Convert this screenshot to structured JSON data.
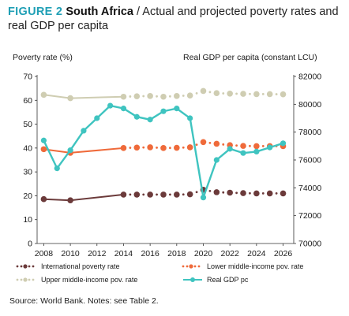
{
  "figure": {
    "label": "FIGURE 2",
    "country": "South Africa",
    "subtitle": "/ Actual and projected poverty rates and real GDP per capita"
  },
  "axes": {
    "left_title": "Poverty rate (%)",
    "right_title": "Real GDP per capita (constant LCU)"
  },
  "source": "Source: World Bank. Notes: see Table 2.",
  "colors": {
    "international": "#6b3a3a",
    "lower_middle": "#ef6a3a",
    "upper_middle": "#cfcdb2",
    "gdp": "#3fc4c0"
  },
  "chart_data": {
    "type": "line",
    "x_ticks": [
      "2008",
      "2010",
      "2012",
      "2014",
      "2016",
      "2018",
      "2020",
      "2022",
      "2024",
      "2026"
    ],
    "xlim": [
      2007.5,
      2026.8
    ],
    "ylim_left": [
      0,
      70
    ],
    "ylim_right": [
      70000,
      82000
    ],
    "y_ticks_left": [
      "0",
      "10",
      "20",
      "30",
      "40",
      "50",
      "60",
      "70"
    ],
    "y_ticks_right": [
      "70000",
      "72000",
      "74000",
      "76000",
      "78000",
      "80000",
      "82000"
    ],
    "grid": false,
    "legend_position": "bottom",
    "series": [
      {
        "name": "International poverty rate",
        "axis": "left",
        "color_key": "international",
        "actual": [
          [
            2008,
            18.6
          ],
          [
            2010,
            18.1
          ],
          [
            2014,
            20.5
          ]
        ],
        "projected": [
          [
            2014,
            20.5
          ],
          [
            2015,
            20.5
          ],
          [
            2016,
            20.5
          ],
          [
            2017,
            20.5
          ],
          [
            2018,
            20.5
          ],
          [
            2019,
            20.6
          ],
          [
            2020,
            22.5
          ],
          [
            2021,
            21.5
          ],
          [
            2022,
            21.3
          ],
          [
            2023,
            21.1
          ],
          [
            2024,
            21.0
          ],
          [
            2025,
            21.0
          ],
          [
            2026,
            21.0
          ]
        ]
      },
      {
        "name": "Lower middle-income pov. rate",
        "axis": "left",
        "color_key": "lower_middle",
        "actual": [
          [
            2008,
            39.5
          ],
          [
            2010,
            38.0
          ],
          [
            2014,
            40.0
          ]
        ],
        "projected": [
          [
            2014,
            40.0
          ],
          [
            2015,
            40.2
          ],
          [
            2016,
            40.3
          ],
          [
            2017,
            40.0
          ],
          [
            2018,
            40.1
          ],
          [
            2019,
            40.3
          ],
          [
            2020,
            42.5
          ],
          [
            2021,
            41.8
          ],
          [
            2022,
            41.2
          ],
          [
            2023,
            40.9
          ],
          [
            2024,
            40.8
          ],
          [
            2025,
            40.8
          ],
          [
            2026,
            40.8
          ]
        ]
      },
      {
        "name": "Upper middle-income pov. rate",
        "axis": "left",
        "color_key": "upper_middle",
        "actual": [
          [
            2008,
            62.3
          ],
          [
            2010,
            60.9
          ],
          [
            2014,
            61.5
          ]
        ],
        "projected": [
          [
            2014,
            61.5
          ],
          [
            2015,
            61.7
          ],
          [
            2016,
            61.8
          ],
          [
            2017,
            61.5
          ],
          [
            2018,
            61.8
          ],
          [
            2019,
            62.0
          ],
          [
            2020,
            63.9
          ],
          [
            2021,
            63.0
          ],
          [
            2022,
            62.8
          ],
          [
            2023,
            62.7
          ],
          [
            2024,
            62.6
          ],
          [
            2025,
            62.6
          ],
          [
            2026,
            62.5
          ]
        ]
      },
      {
        "name": "Real GDP pc",
        "axis": "right",
        "color_key": "gdp",
        "points": [
          [
            2008,
            77.4
          ],
          [
            2009,
            75.4
          ],
          [
            2010,
            76.7
          ],
          [
            2011,
            78.1
          ],
          [
            2012,
            79.0
          ],
          [
            2013,
            79.9
          ],
          [
            2014,
            79.7
          ],
          [
            2015,
            79.1
          ],
          [
            2016,
            78.9
          ],
          [
            2017,
            79.5
          ],
          [
            2018,
            79.7
          ],
          [
            2019,
            79.0
          ],
          [
            2020,
            73.3
          ],
          [
            2021,
            76.0
          ],
          [
            2022,
            76.8
          ],
          [
            2023,
            76.5
          ],
          [
            2024,
            76.6
          ],
          [
            2025,
            76.9
          ],
          [
            2026,
            77.2
          ]
        ]
      }
    ]
  }
}
